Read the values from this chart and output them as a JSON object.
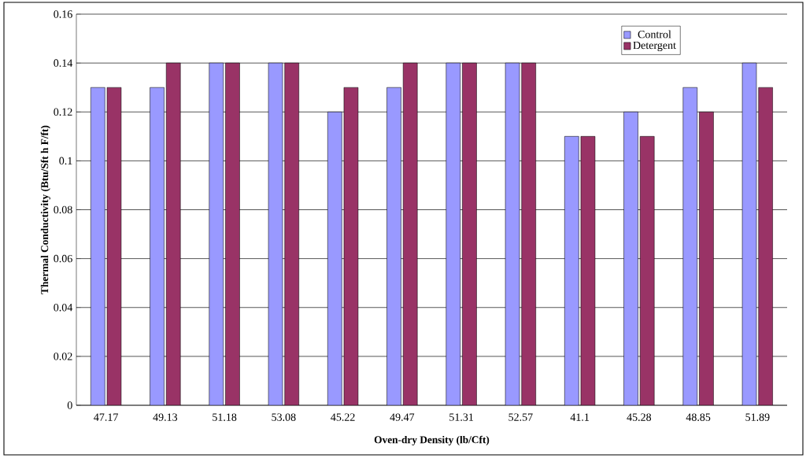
{
  "chart_data": {
    "type": "bar",
    "xlabel": "Oven-dry Density (lb/Cft)",
    "ylabel": "Thermal Conductivity (Btu/Sft h F/ft)",
    "categories": [
      "47.17",
      "49.13",
      "51.18",
      "53.08",
      "45.22",
      "49.47",
      "51.31",
      "52.57",
      "41.1",
      "45.28",
      "48.85",
      "51.89"
    ],
    "series": [
      {
        "name": "Control",
        "color": "#9999ff",
        "values": [
          0.13,
          0.13,
          0.14,
          0.14,
          0.12,
          0.13,
          0.14,
          0.14,
          0.11,
          0.12,
          0.13,
          0.14
        ]
      },
      {
        "name": "Detergent",
        "color": "#993366",
        "values": [
          0.13,
          0.14,
          0.14,
          0.14,
          0.13,
          0.14,
          0.14,
          0.14,
          0.11,
          0.11,
          0.12,
          0.13
        ]
      }
    ],
    "ylim": [
      0,
      0.16
    ],
    "yticks": [
      0,
      0.02,
      0.04,
      0.06,
      0.08,
      0.1,
      0.12,
      0.14,
      0.16
    ],
    "grid": "y",
    "legend": "top right"
  }
}
